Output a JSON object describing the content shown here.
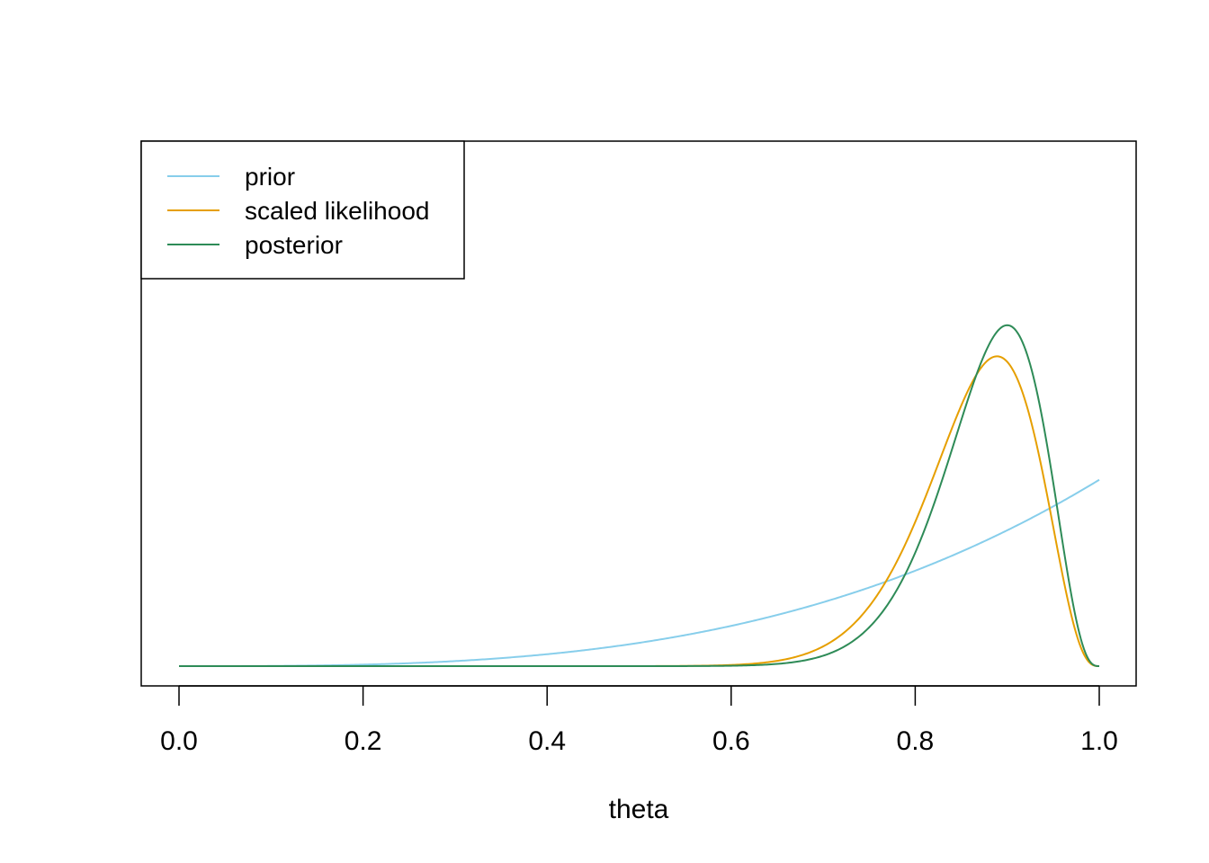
{
  "chart_data": {
    "type": "line",
    "title": "",
    "xlabel": "theta",
    "ylabel": "",
    "xlim": [
      0,
      1
    ],
    "ylim": [
      0,
      11.0
    ],
    "xticks": [
      "0.0",
      "0.2",
      "0.4",
      "0.6",
      "0.8",
      "1.0"
    ],
    "y_axis_shown": false,
    "grid": false,
    "legend_position": "top-left",
    "series": [
      {
        "name": "prior",
        "color": "#87ceeb",
        "shape": "beta",
        "a": 4,
        "b": 1
      },
      {
        "name": "scaled likelihood",
        "color": "#e69f00",
        "shape": "beta",
        "a": 25,
        "b": 4
      },
      {
        "name": "posterior",
        "color": "#2e8b57",
        "shape": "beta",
        "a": 28,
        "b": 4
      }
    ]
  }
}
